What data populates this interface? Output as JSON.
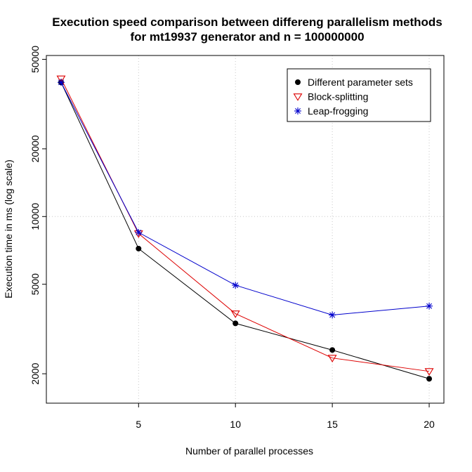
{
  "chart_data": {
    "type": "line",
    "title_line1": "Execution speed comparison between differeng parallelism methods",
    "title_line2": "for mt19937 generator and n = 100000000",
    "xlabel": "Number of parallel processes",
    "ylabel": "Execution time in ms (log scale)",
    "x_scale": "linear",
    "y_scale": "log",
    "xlim": [
      0.24,
      20.76
    ],
    "ylim": [
      1480,
      52000
    ],
    "x_ticks": [
      5,
      10,
      15,
      20
    ],
    "y_ticks": [
      2000,
      5000,
      10000,
      20000,
      50000
    ],
    "x_tick_labels": [
      "5",
      "10",
      "15",
      "20"
    ],
    "y_tick_labels": [
      "2000",
      "5000",
      "10000",
      "20000",
      "50000"
    ],
    "grid": {
      "x": [
        5,
        10,
        15,
        20
      ],
      "y": [
        10000
      ]
    },
    "legend_position": "top-right",
    "x": [
      1,
      5,
      10,
      15,
      20
    ],
    "series": [
      {
        "name": "Different parameter sets",
        "marker": "filled-circle",
        "color": "#000000",
        "values": [
          39500,
          7200,
          3350,
          2550,
          1900
        ]
      },
      {
        "name": "Block-splitting",
        "marker": "triangle-down",
        "color": "#dd0000",
        "values": [
          41000,
          8400,
          3700,
          2350,
          2050
        ]
      },
      {
        "name": "Leap-frogging",
        "marker": "asterisk",
        "color": "#0000cc",
        "values": [
          39500,
          8500,
          4950,
          3650,
          4000
        ]
      }
    ]
  }
}
